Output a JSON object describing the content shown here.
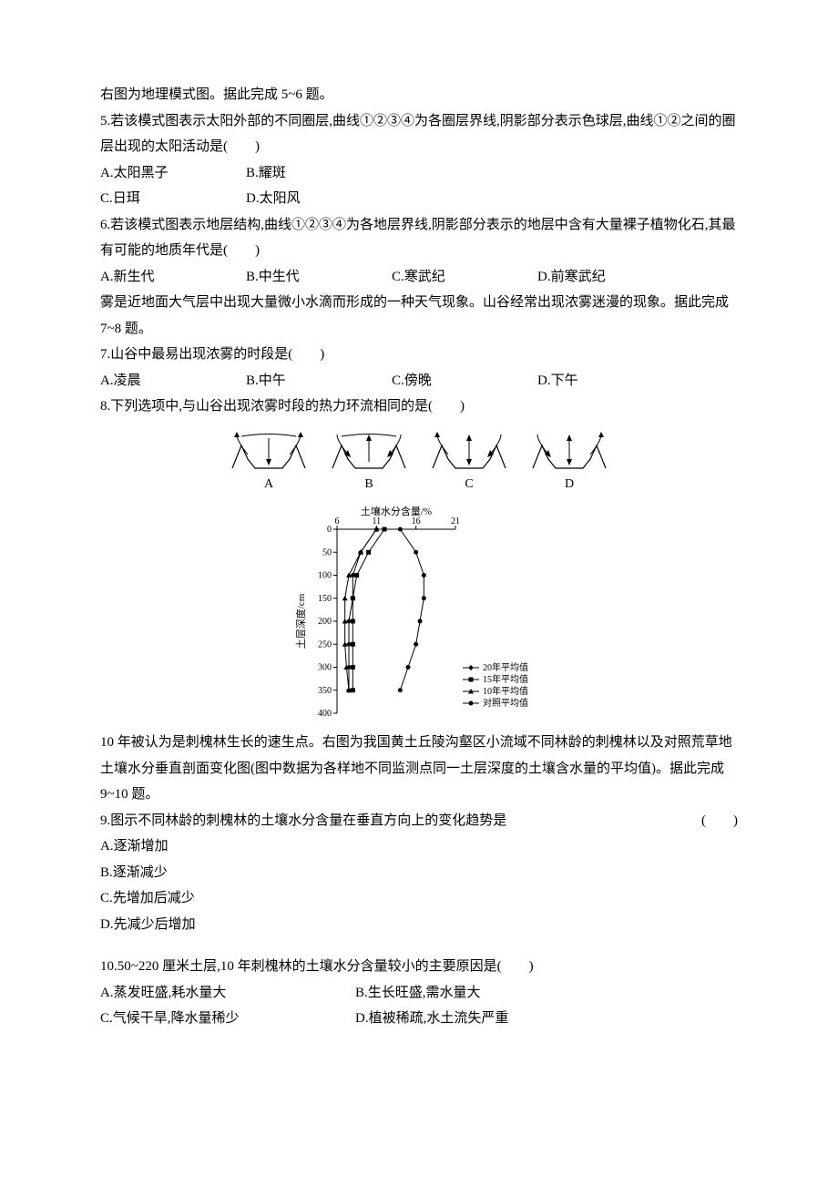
{
  "intro56": "右图为地理模式图。据此完成 5~6 题。",
  "q5": {
    "stem": "5.若该模式图表示太阳外部的不同圈层,曲线①②③④为各圈层界线,阴影部分表示色球层,曲线①②之间的圈层出现的太阳活动是(　　)",
    "a": "A.太阳黑子",
    "b": "B.耀斑",
    "c": "C.日珥",
    "d": "D.太阳风"
  },
  "q6": {
    "stem": "6.若该模式图表示地层结构,曲线①②③④为各地层界线,阴影部分表示的地层中含有大量裸子植物化石,其最有可能的地质年代是(　　)",
    "a": "A.新生代",
    "b": "B.中生代",
    "c": "C.寒武纪",
    "d": "D.前寒武纪"
  },
  "intro78": "雾是近地面大气层中出现大量微小水滴而形成的一种天气现象。山谷经常出现浓雾迷漫的现象。据此完成 7~8 题。",
  "q7": {
    "stem": "7.山谷中最易出现浓雾的时段是(　　)",
    "a": "A.凌晨",
    "b": "B.中午",
    "c": "C.傍晚",
    "d": "D.下午"
  },
  "q8": {
    "stem": "8.下列选项中,与山谷出现浓雾时段的热力环流相同的是(　　)",
    "figLabels": [
      "A",
      "B",
      "C",
      "D"
    ]
  },
  "chart": {
    "title": "土壤水分含量/%",
    "ylabel": "土层深度/cm",
    "xticks": [
      "6",
      "11",
      "16",
      "21"
    ],
    "yticks": [
      "0",
      "50",
      "100",
      "150",
      "200",
      "250",
      "300",
      "350",
      "400"
    ],
    "xlim": [
      6,
      21
    ],
    "ylim": [
      0,
      400
    ],
    "legend": [
      "20年平均值",
      "15年平均值",
      "10年平均值",
      "对照平均值"
    ],
    "markers": [
      "diamond",
      "square",
      "triangle",
      "circle"
    ],
    "series_color": "#000000",
    "background": "#ffffff",
    "series": {
      "y_depth": [
        0,
        50,
        100,
        150,
        200,
        250,
        300,
        350
      ],
      "s20": [
        11,
        9,
        8,
        8,
        7.5,
        7.5,
        7.5,
        7.5
      ],
      "s15": [
        12,
        10,
        8.5,
        8,
        8,
        8,
        8,
        8
      ],
      "s10": [
        11,
        9,
        7.5,
        7,
        7,
        7,
        7.2,
        7.5
      ],
      "control": [
        14,
        16,
        17,
        17,
        16.5,
        16,
        15,
        14
      ]
    }
  },
  "intro910": "10 年被认为是刺槐林生长的速生点。右图为我国黄土丘陵沟壑区小流域不同林龄的刺槐林以及对照荒草地土壤水分垂直剖面变化图(图中数据为各样地不同监测点同一土层深度的土壤含水量的平均值)。据此完成 9~10 题。",
  "q9": {
    "stem": "9.图示不同林龄的刺槐林的土壤水分含量在垂直方向上的变化趋势是",
    "paren": "(　　)",
    "a": "A.逐渐增加",
    "b": "B.逐渐减少",
    "c": "C.先增加后减少",
    "d": "D.先减少后增加"
  },
  "q10": {
    "stem": "10.50~220 厘米土层,10 年刺槐林的土壤水分含量较小的主要原因是(　　)",
    "a": "A.蒸发旺盛,耗水量大",
    "b": "B.生长旺盛,需水量大",
    "c": "C.气候干旱,降水量稀少",
    "d": "D.植被稀疏,水土流失严重"
  }
}
